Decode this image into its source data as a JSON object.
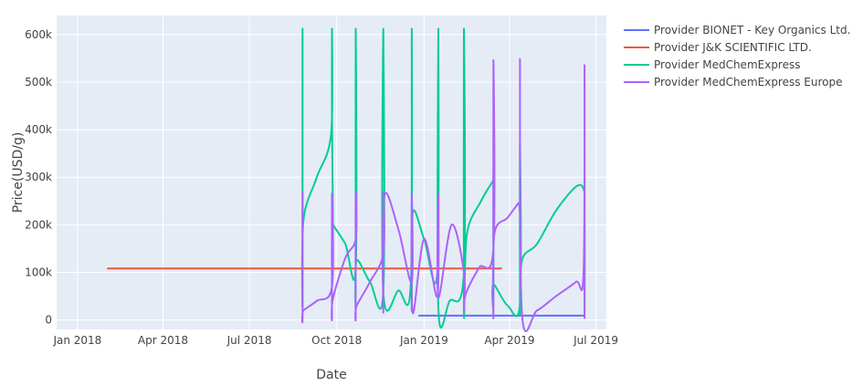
{
  "chart_data": {
    "type": "line",
    "xlabel": "Date",
    "ylabel": "Price(USD/g)",
    "xlim": [
      "2017-12-10",
      "2019-07-12"
    ],
    "ylim": [
      -20000,
      640000
    ],
    "x_ticks": [
      {
        "date": "2018-01-01",
        "label": "Jan 2018"
      },
      {
        "date": "2018-04-01",
        "label": "Apr 2018"
      },
      {
        "date": "2018-07-01",
        "label": "Jul 2018"
      },
      {
        "date": "2018-10-01",
        "label": "Oct 2018"
      },
      {
        "date": "2019-01-01",
        "label": "Jan 2019"
      },
      {
        "date": "2019-04-01",
        "label": "Apr 2019"
      },
      {
        "date": "2019-07-01",
        "label": "Jul 2019"
      }
    ],
    "y_ticks": [
      {
        "value": 0,
        "label": "0"
      },
      {
        "value": 100000,
        "label": "100k"
      },
      {
        "value": 200000,
        "label": "200k"
      },
      {
        "value": 300000,
        "label": "300k"
      },
      {
        "value": 400000,
        "label": "400k"
      },
      {
        "value": 500000,
        "label": "500k"
      },
      {
        "value": 600000,
        "label": "600k"
      }
    ],
    "grid": true,
    "legend_position": "right",
    "series": [
      {
        "name": "Provider BIONET - Key Organics Ltd.",
        "color": "#636efa",
        "x": [
          "2018-12-26",
          "2019-06-19"
        ],
        "y": [
          9000,
          9000
        ]
      },
      {
        "name": "Provider J&K SCIENTIFIC LTD.",
        "color": "#ef553b",
        "x": [
          "2018-02-15",
          "2018-03-10",
          "2019-03-24"
        ],
        "y": [
          108000,
          108000,
          108000
        ]
      },
      {
        "name": "Provider MedChemExpress",
        "color": "#00cc96",
        "x": [
          "2018-08-26",
          "2018-08-26",
          "2018-08-26",
          "2018-08-27",
          "2018-09-10",
          "2018-09-25",
          "2018-09-26",
          "2018-09-26",
          "2018-09-27",
          "2018-09-27",
          "2018-10-10",
          "2018-10-21",
          "2018-10-21",
          "2018-10-21",
          "2018-10-22",
          "2018-11-05",
          "2018-11-19",
          "2018-11-19",
          "2018-11-19",
          "2018-12-05",
          "2018-12-18",
          "2018-12-19",
          "2018-12-19",
          "2018-12-20",
          "2019-01-01",
          "2019-01-15",
          "2019-01-16",
          "2019-01-16",
          "2019-01-28",
          "2019-02-12",
          "2019-02-12",
          "2019-02-12",
          "2019-02-15",
          "2019-03-02",
          "2019-03-14",
          "2019-03-15",
          "2019-03-15",
          "2019-03-15",
          "2019-03-30",
          "2019-04-12",
          "2019-04-12",
          "2019-04-12",
          "2019-04-14",
          "2019-04-30",
          "2019-05-20",
          "2019-06-10",
          "2019-06-18",
          "2019-06-19",
          "2019-06-19",
          "2019-06-19"
        ],
        "y": [
          130000,
          612000,
          40000,
          210000,
          300000,
          390000,
          612000,
          440000,
          205000,
          200000,
          160000,
          110000,
          612000,
          45000,
          125000,
          80000,
          60000,
          612000,
          60000,
          62000,
          75000,
          612000,
          30000,
          225000,
          170000,
          100000,
          612000,
          25000,
          40000,
          100000,
          612000,
          20000,
          180000,
          250000,
          290000,
          290000,
          35000,
          75000,
          30000,
          36000,
          365000,
          18000,
          125000,
          160000,
          230000,
          280000,
          275000,
          230000,
          22000,
          165000
        ]
      },
      {
        "name": "Provider MedChemExpress Europe",
        "color": "#ab63fa",
        "x": [
          "2018-08-26",
          "2018-08-26",
          "2018-08-27",
          "2018-09-10",
          "2018-09-26",
          "2018-09-26",
          "2018-09-26",
          "2018-09-27",
          "2018-10-10",
          "2018-10-21",
          "2018-10-21",
          "2018-10-21",
          "2018-10-22",
          "2018-11-05",
          "2018-11-19",
          "2018-11-19",
          "2018-11-19",
          "2018-11-20",
          "2018-12-05",
          "2018-12-19",
          "2018-12-19",
          "2018-12-20",
          "2019-01-01",
          "2019-01-15",
          "2019-01-16",
          "2019-01-16",
          "2019-01-30",
          "2019-02-12",
          "2019-02-12",
          "2019-02-14",
          "2019-02-28",
          "2019-03-15",
          "2019-03-15",
          "2019-03-15",
          "2019-03-16",
          "2019-03-30",
          "2019-04-10",
          "2019-04-12",
          "2019-04-12",
          "2019-04-14",
          "2019-04-30",
          "2019-05-20",
          "2019-06-10",
          "2019-06-18",
          "2019-06-19",
          "2019-06-19",
          "2019-06-19"
        ],
        "y": [
          270000,
          12000,
          20000,
          40000,
          70000,
          265000,
          12000,
          45000,
          130000,
          170000,
          265000,
          15000,
          30000,
          80000,
          140000,
          265000,
          15000,
          260000,
          190000,
          80000,
          265000,
          15000,
          170000,
          50000,
          265000,
          48000,
          200000,
          100000,
          20000,
          55000,
          110000,
          150000,
          545000,
          15000,
          180000,
          215000,
          245000,
          250000,
          545000,
          15000,
          20000,
          50000,
          80000,
          100000,
          535000,
          15000,
          180000
        ]
      }
    ]
  }
}
